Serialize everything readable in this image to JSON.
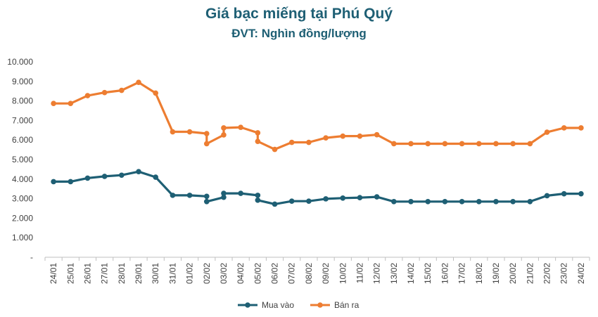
{
  "chart_data": {
    "type": "line",
    "title": "Giá bạc miếng tại Phú Quý",
    "subtitle": "ĐVT: Nghìn đồng/lượng",
    "ylim": [
      0,
      10000
    ],
    "y_ticks": [
      "-",
      "1.000",
      "2.000",
      "3.000",
      "4.000",
      "5.000",
      "6.000",
      "7.000",
      "8.000",
      "9.000",
      "10.000"
    ],
    "grid": false,
    "legend_position": "bottom",
    "categories": [
      "24/01",
      "25/01",
      "26/01",
      "27/01",
      "28/01",
      "29/01",
      "30/01",
      "31/01",
      "01/02",
      "02/02",
      "03/02",
      "04/02",
      "05/02",
      "06/02",
      "07/02",
      "08/02",
      "09/02",
      "10/02",
      "11/02",
      "12/02",
      "13/02",
      "14/02",
      "15/02",
      "16/02",
      "17/02",
      "18/02",
      "19/02",
      "20/02",
      "21/02",
      "22/02",
      "23/02",
      "24/02"
    ],
    "series": [
      {
        "name": "Mua vào",
        "color": "#1e5f74",
        "points": [
          [
            0,
            3870
          ],
          [
            1,
            3870
          ],
          [
            2,
            4050
          ],
          [
            3,
            4140
          ],
          [
            4,
            4200
          ],
          [
            5,
            4380
          ],
          [
            6,
            4100
          ],
          [
            7,
            3170
          ],
          [
            8,
            3170
          ],
          [
            9,
            3120
          ],
          [
            9,
            2850
          ],
          [
            10,
            3070
          ],
          [
            10,
            3270
          ],
          [
            11,
            3270
          ],
          [
            12,
            3170
          ],
          [
            12,
            2920
          ],
          [
            13,
            2720
          ],
          [
            14,
            2870
          ],
          [
            15,
            2870
          ],
          [
            16,
            2990
          ],
          [
            17,
            3030
          ],
          [
            18,
            3050
          ],
          [
            19,
            3090
          ],
          [
            20,
            2850
          ],
          [
            21,
            2850
          ],
          [
            22,
            2850
          ],
          [
            23,
            2850
          ],
          [
            24,
            2850
          ],
          [
            25,
            2850
          ],
          [
            26,
            2850
          ],
          [
            27,
            2850
          ],
          [
            28,
            2850
          ],
          [
            29,
            3150
          ],
          [
            30,
            3250
          ],
          [
            31,
            3250
          ]
        ]
      },
      {
        "name": "Bán ra",
        "color": "#ed7d31",
        "points": [
          [
            0,
            7870
          ],
          [
            1,
            7870
          ],
          [
            2,
            8270
          ],
          [
            3,
            8430
          ],
          [
            4,
            8540
          ],
          [
            5,
            8950
          ],
          [
            6,
            8400
          ],
          [
            7,
            6420
          ],
          [
            8,
            6420
          ],
          [
            9,
            6330
          ],
          [
            9,
            5810
          ],
          [
            10,
            6260
          ],
          [
            10,
            6620
          ],
          [
            11,
            6650
          ],
          [
            12,
            6370
          ],
          [
            12,
            5930
          ],
          [
            13,
            5520
          ],
          [
            14,
            5880
          ],
          [
            15,
            5880
          ],
          [
            16,
            6110
          ],
          [
            17,
            6200
          ],
          [
            18,
            6200
          ],
          [
            19,
            6270
          ],
          [
            20,
            5810
          ],
          [
            21,
            5810
          ],
          [
            22,
            5810
          ],
          [
            23,
            5810
          ],
          [
            24,
            5810
          ],
          [
            25,
            5810
          ],
          [
            26,
            5810
          ],
          [
            27,
            5810
          ],
          [
            28,
            5810
          ],
          [
            29,
            6400
          ],
          [
            30,
            6620
          ],
          [
            31,
            6620
          ]
        ]
      }
    ]
  }
}
